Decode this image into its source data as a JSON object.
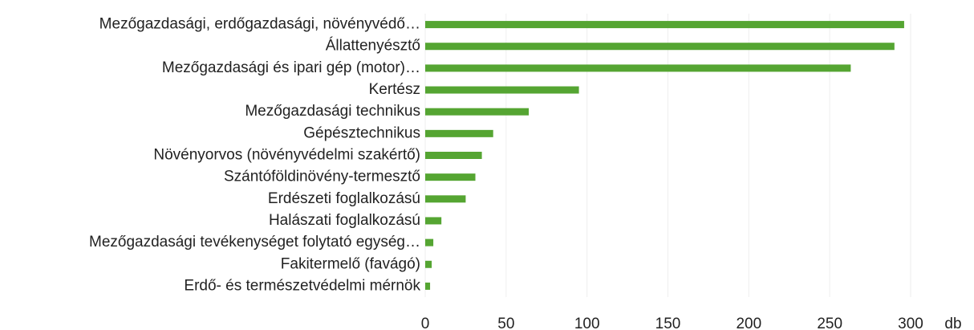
{
  "chart_data": {
    "type": "barh",
    "categories": [
      "Mezőgazdasági, erdőgazdasági, növényvédő…",
      "Állattenyésztő",
      "Mezőgazdasági és ipari gép (motor)…",
      "Kertész",
      "Mezőgazdasági technikus",
      "Gépésztechnikus",
      "Növényorvos (növényvédelmi szakértő)",
      "Szántóföldinövény-termesztő",
      "Erdészeti foglalkozású",
      "Halászati foglalkozású",
      "Mezőgazdasági tevékenységet folytató egység…",
      "Fakitermelő (favágó)",
      "Erdő- és természetvédelmi mérnök"
    ],
    "values": [
      296,
      290,
      263,
      95,
      64,
      42,
      35,
      31,
      25,
      10,
      5,
      4,
      3
    ],
    "color": "#55a532",
    "xlabel": "db",
    "xlim": [
      0,
      300
    ],
    "xticks": [
      0,
      50,
      100,
      150,
      200,
      250,
      300
    ],
    "grid": true
  }
}
